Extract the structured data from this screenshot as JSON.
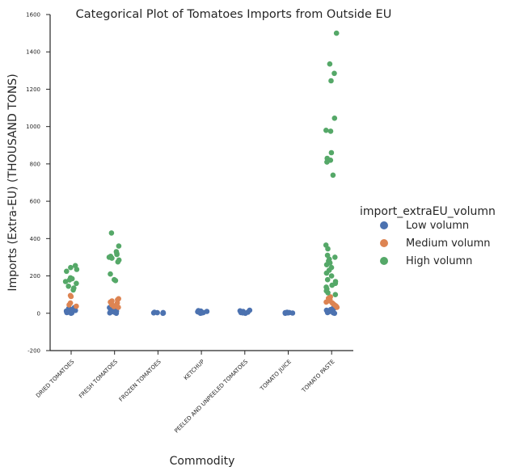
{
  "chart_data": {
    "type": "scatter",
    "subtype": "categorical-strip",
    "title": "Categorical Plot of Tomatoes Imports from Outside EU",
    "xlabel": "Commodity",
    "ylabel": "Imports (Extra-EU) (THOUSAND TONS)",
    "ylim": [
      -200,
      1600
    ],
    "yticks": [
      -200,
      0,
      200,
      400,
      600,
      800,
      1000,
      1200,
      1400,
      1600
    ],
    "categories": [
      "DRIED TOMATOES",
      "FRESH TOMATOES",
      "FROZEN TOMATOES",
      "KETCHUP",
      "PEELED AND UNPEELED TOMATOES",
      "TOMATO JUICE",
      "TOMATO PASTE"
    ],
    "grid": false,
    "legend": {
      "title": "import_extraEU_volumn",
      "placement": "right",
      "entries": [
        "Low volumn",
        "Medium volumn",
        "High volumn"
      ]
    },
    "series": [
      {
        "name": "Low volumn",
        "color": "#4c72b0",
        "points": [
          [
            "DRIED TOMATOES",
            0
          ],
          [
            "DRIED TOMATOES",
            2
          ],
          [
            "DRIED TOMATOES",
            4
          ],
          [
            "DRIED TOMATOES",
            6
          ],
          [
            "DRIED TOMATOES",
            8
          ],
          [
            "DRIED TOMATOES",
            10
          ],
          [
            "DRIED TOMATOES",
            12
          ],
          [
            "DRIED TOMATOES",
            15
          ],
          [
            "DRIED TOMATOES",
            18
          ],
          [
            "DRIED TOMATOES",
            22
          ],
          [
            "DRIED TOMATOES",
            26
          ],
          [
            "DRIED TOMATOES",
            30
          ],
          [
            "FRESH TOMATOES",
            0
          ],
          [
            "FRESH TOMATOES",
            2
          ],
          [
            "FRESH TOMATOES",
            5
          ],
          [
            "FRESH TOMATOES",
            8
          ],
          [
            "FRESH TOMATOES",
            11
          ],
          [
            "FRESH TOMATOES",
            14
          ],
          [
            "FRESH TOMATOES",
            18
          ],
          [
            "FRESH TOMATOES",
            22
          ],
          [
            "FRESH TOMATOES",
            26
          ],
          [
            "FRESH TOMATOES",
            30
          ],
          [
            "FROZEN TOMATOES",
            0
          ],
          [
            "FROZEN TOMATOES",
            1
          ],
          [
            "FROZEN TOMATOES",
            2
          ],
          [
            "FROZEN TOMATOES",
            3
          ],
          [
            "FROZEN TOMATOES",
            4
          ],
          [
            "FROZEN TOMATOES",
            5
          ],
          [
            "KETCHUP",
            0
          ],
          [
            "KETCHUP",
            2
          ],
          [
            "KETCHUP",
            4
          ],
          [
            "KETCHUP",
            6
          ],
          [
            "KETCHUP",
            8
          ],
          [
            "KETCHUP",
            10
          ],
          [
            "KETCHUP",
            12
          ],
          [
            "KETCHUP",
            14
          ],
          [
            "PEELED AND UNPEELED TOMATOES",
            0
          ],
          [
            "PEELED AND UNPEELED TOMATOES",
            2
          ],
          [
            "PEELED AND UNPEELED TOMATOES",
            4
          ],
          [
            "PEELED AND UNPEELED TOMATOES",
            6
          ],
          [
            "PEELED AND UNPEELED TOMATOES",
            8
          ],
          [
            "PEELED AND UNPEELED TOMATOES",
            10
          ],
          [
            "PEELED AND UNPEELED TOMATOES",
            13
          ],
          [
            "PEELED AND UNPEELED TOMATOES",
            16
          ],
          [
            "TOMATO JUICE",
            0
          ],
          [
            "TOMATO JUICE",
            1
          ],
          [
            "TOMATO JUICE",
            2
          ],
          [
            "TOMATO JUICE",
            3
          ],
          [
            "TOMATO JUICE",
            4
          ],
          [
            "TOMATO JUICE",
            5
          ],
          [
            "TOMATO PASTE",
            0
          ],
          [
            "TOMATO PASTE",
            2
          ],
          [
            "TOMATO PASTE",
            4
          ],
          [
            "TOMATO PASTE",
            7
          ],
          [
            "TOMATO PASTE",
            10
          ],
          [
            "TOMATO PASTE",
            13
          ],
          [
            "TOMATO PASTE",
            16
          ],
          [
            "TOMATO PASTE",
            20
          ],
          [
            "TOMATO PASTE",
            24
          ],
          [
            "TOMATO PASTE",
            28
          ]
        ]
      },
      {
        "name": "Medium volumn",
        "color": "#dd8452",
        "points": [
          [
            "DRIED TOMATOES",
            38
          ],
          [
            "DRIED TOMATOES",
            45
          ],
          [
            "DRIED TOMATOES",
            55
          ],
          [
            "DRIED TOMATOES",
            90
          ],
          [
            "DRIED TOMATOES",
            95
          ],
          [
            "FRESH TOMATOES",
            32
          ],
          [
            "FRESH TOMATOES",
            36
          ],
          [
            "FRESH TOMATOES",
            40
          ],
          [
            "FRESH TOMATOES",
            45
          ],
          [
            "FRESH TOMATOES",
            50
          ],
          [
            "FRESH TOMATOES",
            55
          ],
          [
            "FRESH TOMATOES",
            60
          ],
          [
            "FRESH TOMATOES",
            66
          ],
          [
            "FRESH TOMATOES",
            72
          ],
          [
            "FRESH TOMATOES",
            78
          ],
          [
            "TOMATO PASTE",
            32
          ],
          [
            "TOMATO PASTE",
            36
          ],
          [
            "TOMATO PASTE",
            40
          ],
          [
            "TOMATO PASTE",
            45
          ],
          [
            "TOMATO PASTE",
            50
          ],
          [
            "TOMATO PASTE",
            55
          ],
          [
            "TOMATO PASTE",
            60
          ],
          [
            "TOMATO PASTE",
            66
          ],
          [
            "TOMATO PASTE",
            72
          ],
          [
            "TOMATO PASTE",
            80
          ],
          [
            "TOMATO PASTE",
            88
          ]
        ]
      },
      {
        "name": "High volumn",
        "color": "#55a868",
        "points": [
          [
            "DRIED TOMATOES",
            125
          ],
          [
            "DRIED TOMATOES",
            135
          ],
          [
            "DRIED TOMATOES",
            145
          ],
          [
            "DRIED TOMATOES",
            160
          ],
          [
            "DRIED TOMATOES",
            170
          ],
          [
            "DRIED TOMATOES",
            178
          ],
          [
            "DRIED TOMATOES",
            185
          ],
          [
            "DRIED TOMATOES",
            190
          ],
          [
            "DRIED TOMATOES",
            225
          ],
          [
            "DRIED TOMATOES",
            235
          ],
          [
            "DRIED TOMATOES",
            245
          ],
          [
            "DRIED TOMATOES",
            255
          ],
          [
            "FRESH TOMATOES",
            175
          ],
          [
            "FRESH TOMATOES",
            180
          ],
          [
            "FRESH TOMATOES",
            210
          ],
          [
            "FRESH TOMATOES",
            275
          ],
          [
            "FRESH TOMATOES",
            285
          ],
          [
            "FRESH TOMATOES",
            295
          ],
          [
            "FRESH TOMATOES",
            300
          ],
          [
            "FRESH TOMATOES",
            305
          ],
          [
            "FRESH TOMATOES",
            315
          ],
          [
            "FRESH TOMATOES",
            320
          ],
          [
            "FRESH TOMATOES",
            330
          ],
          [
            "FRESH TOMATOES",
            360
          ],
          [
            "FRESH TOMATOES",
            430
          ],
          [
            "TOMATO PASTE",
            100
          ],
          [
            "TOMATO PASTE",
            110
          ],
          [
            "TOMATO PASTE",
            120
          ],
          [
            "TOMATO PASTE",
            130
          ],
          [
            "TOMATO PASTE",
            140
          ],
          [
            "TOMATO PASTE",
            150
          ],
          [
            "TOMATO PASTE",
            160
          ],
          [
            "TOMATO PASTE",
            170
          ],
          [
            "TOMATO PASTE",
            180
          ],
          [
            "TOMATO PASTE",
            200
          ],
          [
            "TOMATO PASTE",
            215
          ],
          [
            "TOMATO PASTE",
            230
          ],
          [
            "TOMATO PASTE",
            245
          ],
          [
            "TOMATO PASTE",
            260
          ],
          [
            "TOMATO PASTE",
            270
          ],
          [
            "TOMATO PASTE",
            280
          ],
          [
            "TOMATO PASTE",
            290
          ],
          [
            "TOMATO PASTE",
            300
          ],
          [
            "TOMATO PASTE",
            310
          ],
          [
            "TOMATO PASTE",
            345
          ],
          [
            "TOMATO PASTE",
            365
          ],
          [
            "TOMATO PASTE",
            740
          ],
          [
            "TOMATO PASTE",
            810
          ],
          [
            "TOMATO PASTE",
            820
          ],
          [
            "TOMATO PASTE",
            830
          ],
          [
            "TOMATO PASTE",
            860
          ],
          [
            "TOMATO PASTE",
            975
          ],
          [
            "TOMATO PASTE",
            980
          ],
          [
            "TOMATO PASTE",
            1045
          ],
          [
            "TOMATO PASTE",
            1245
          ],
          [
            "TOMATO PASTE",
            1285
          ],
          [
            "TOMATO PASTE",
            1335
          ],
          [
            "TOMATO PASTE",
            1500
          ]
        ]
      }
    ]
  }
}
